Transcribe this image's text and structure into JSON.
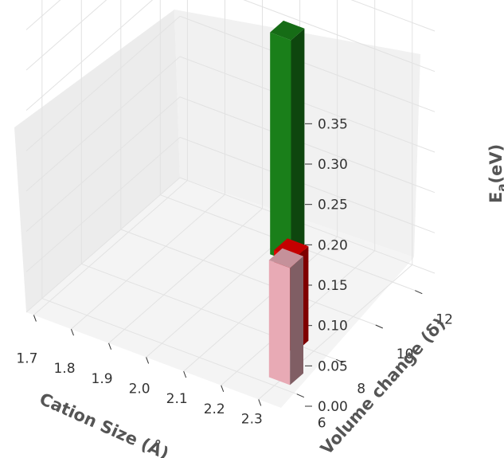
{
  "chart_data": {
    "type": "bar3d",
    "xlabel": "Cation Size (Å)",
    "ylabel": "Volume change (δ)",
    "zlabel_main": "E",
    "zlabel_sub": "a",
    "zlabel_unit": "(eV)",
    "x_ticks": [
      "1.7",
      "1.8",
      "1.9",
      "2.0",
      "2.1",
      "2.2",
      "2.3"
    ],
    "y_ticks": [
      "6",
      "8",
      "10",
      "12"
    ],
    "z_ticks": [
      "0.00",
      "0.05",
      "0.10",
      "0.15",
      "0.20",
      "0.25",
      "0.30",
      "0.35"
    ],
    "grid": true,
    "bars": [
      {
        "color": "#1a7f1a",
        "x": 2.04,
        "y": 11.6,
        "value": 0.275
      },
      {
        "color": "#e60000",
        "x": 2.24,
        "y": 8.0,
        "value": 0.117
      },
      {
        "color": "#e8aab5",
        "x": 2.3,
        "y": 6.6,
        "value": 0.145
      }
    ]
  }
}
